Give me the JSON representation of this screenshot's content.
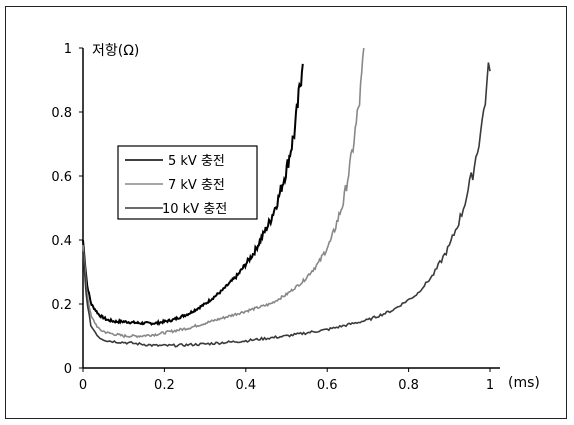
{
  "chart_data": {
    "type": "line",
    "title": "",
    "ylabel": "저항(Ω)",
    "xlabel": "(ms)",
    "xlim": [
      0,
      1
    ],
    "ylim": [
      0,
      1
    ],
    "xticks": [
      "0",
      "0.2",
      "0.4",
      "0.6",
      "0.8",
      "1"
    ],
    "yticks": [
      "0",
      "0.2",
      "0.4",
      "0.6",
      "0.8",
      "1"
    ],
    "grid": false,
    "legend_position": "left-middle",
    "series": [
      {
        "name": "5 kV 충전",
        "color": "#000000",
        "x": [
          0.0,
          0.01,
          0.02,
          0.04,
          0.06,
          0.08,
          0.1,
          0.14,
          0.18,
          0.22,
          0.26,
          0.3,
          0.34,
          0.38,
          0.42,
          0.46,
          0.48,
          0.5,
          0.52,
          0.535,
          0.54
        ],
        "y": [
          0.4,
          0.26,
          0.2,
          0.165,
          0.15,
          0.145,
          0.145,
          0.14,
          0.14,
          0.15,
          0.17,
          0.2,
          0.24,
          0.29,
          0.36,
          0.46,
          0.53,
          0.62,
          0.74,
          0.9,
          0.98
        ]
      },
      {
        "name": "7 kV 충전",
        "color": "#888888",
        "x": [
          0.0,
          0.01,
          0.02,
          0.04,
          0.06,
          0.1,
          0.14,
          0.18,
          0.22,
          0.26,
          0.3,
          0.34,
          0.38,
          0.42,
          0.46,
          0.5,
          0.54,
          0.58,
          0.61,
          0.64,
          0.66,
          0.68,
          0.69
        ],
        "y": [
          0.38,
          0.23,
          0.16,
          0.12,
          0.11,
          0.1,
          0.1,
          0.105,
          0.115,
          0.125,
          0.14,
          0.155,
          0.17,
          0.185,
          0.2,
          0.23,
          0.27,
          0.33,
          0.4,
          0.52,
          0.66,
          0.84,
          0.98
        ]
      },
      {
        "name": "10 kV 충전",
        "color": "#3a3a3a",
        "x": [
          0.0,
          0.01,
          0.02,
          0.04,
          0.06,
          0.1,
          0.14,
          0.18,
          0.22,
          0.3,
          0.4,
          0.5,
          0.6,
          0.7,
          0.76,
          0.82,
          0.86,
          0.9,
          0.93,
          0.96,
          0.98,
          1.0
        ],
        "y": [
          0.36,
          0.2,
          0.13,
          0.095,
          0.085,
          0.08,
          0.075,
          0.07,
          0.07,
          0.075,
          0.085,
          0.1,
          0.12,
          0.15,
          0.18,
          0.23,
          0.29,
          0.38,
          0.48,
          0.62,
          0.76,
          0.96
        ]
      }
    ]
  }
}
